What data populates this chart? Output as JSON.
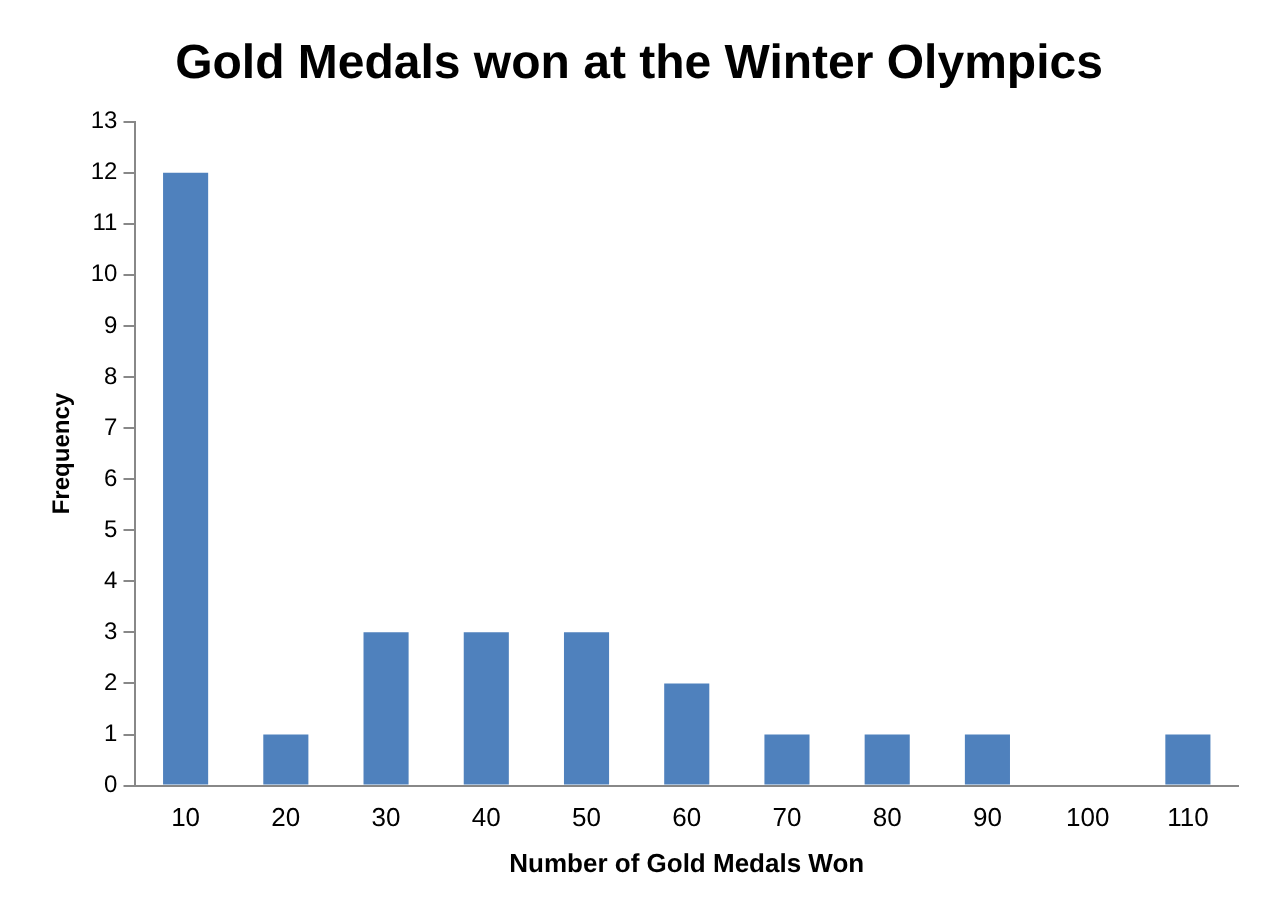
{
  "chart_data": {
    "type": "bar",
    "title": "Gold Medals won at the Winter Olympics",
    "xlabel": "Number of Gold Medals Won",
    "ylabel": "Frequency",
    "categories": [
      "10",
      "20",
      "30",
      "40",
      "50",
      "60",
      "70",
      "80",
      "90",
      "100",
      "110"
    ],
    "values": [
      12,
      1,
      3,
      3,
      3,
      2,
      1,
      1,
      1,
      0,
      1
    ],
    "color": "#4f81bd",
    "ylim": [
      0,
      13
    ],
    "yticks": [
      0,
      1,
      2,
      3,
      4,
      5,
      6,
      7,
      8,
      9,
      10,
      11,
      12,
      13
    ],
    "grid": false,
    "legend": false
  }
}
